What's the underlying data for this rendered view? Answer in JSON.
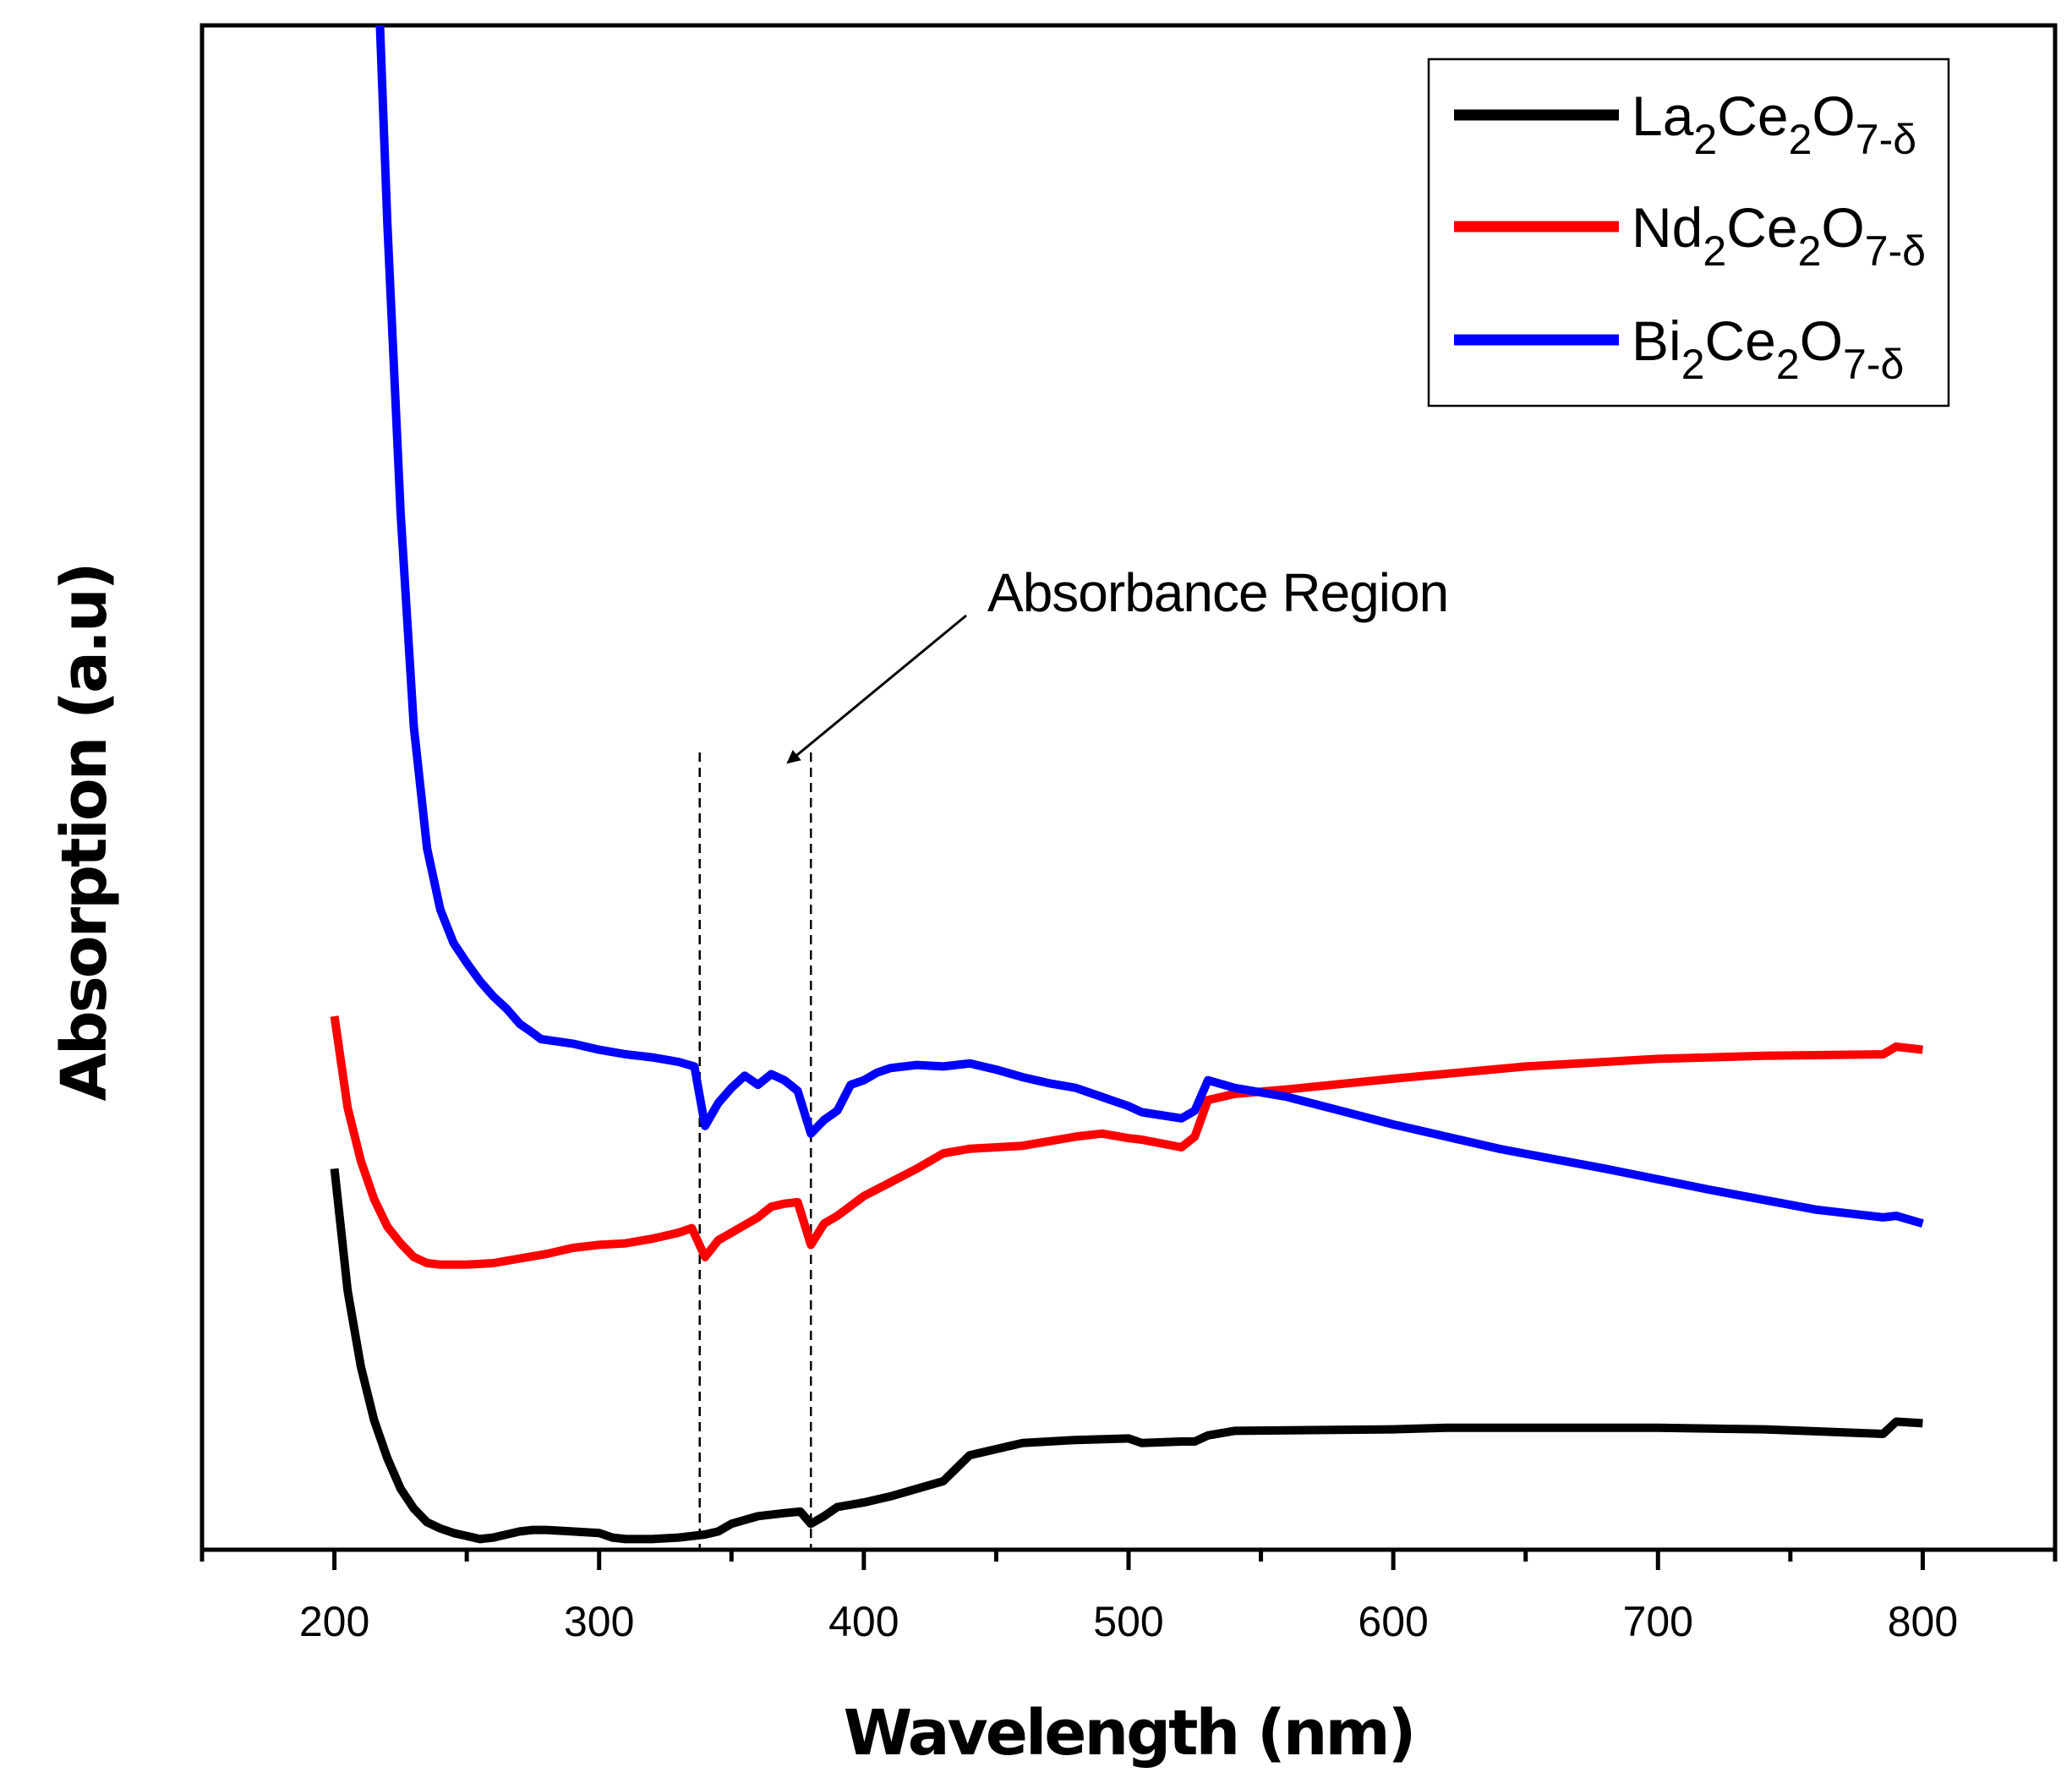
{
  "chart_data": {
    "type": "line",
    "title": "",
    "xlabel": "Wavelength (nm)",
    "ylabel": "Absorption (a.u)",
    "xlim": [
      150,
      850
    ],
    "ylim": [
      0,
      100
    ],
    "xticks": [
      200,
      300,
      400,
      500,
      600,
      700,
      800
    ],
    "xtick_labels": [
      "200",
      "300",
      "400",
      "500",
      "600",
      "700",
      "800"
    ],
    "yticks_shown": false,
    "grid": false,
    "legend_position": "top-right",
    "annotation": {
      "text": "Absorbance Region",
      "dashed_lines_x": [
        338,
        380
      ]
    },
    "series": [
      {
        "name": "La2Ce2O7-δ",
        "legend": {
          "base1": "La",
          "sub1": "2",
          "base2": "Ce",
          "sub2": "2",
          "base3": "O",
          "sub3": "7-δ"
        },
        "color": "#000000",
        "x": [
          200,
          205,
          210,
          215,
          220,
          225,
          230,
          235,
          240,
          245,
          250,
          255,
          260,
          265,
          270,
          275,
          280,
          290,
          300,
          305,
          310,
          320,
          330,
          340,
          345,
          350,
          360,
          370,
          376,
          380,
          385,
          390,
          400,
          410,
          420,
          430,
          440,
          460,
          480,
          500,
          505,
          520,
          525,
          530,
          540,
          600,
          620,
          700,
          740,
          785,
          790,
          800
        ],
        "y": [
          25,
          17,
          12,
          8.5,
          6,
          4,
          2.7,
          1.8,
          1.4,
          1.1,
          0.9,
          0.7,
          0.8,
          1.0,
          1.2,
          1.3,
          1.3,
          1.2,
          1.1,
          0.8,
          0.7,
          0.7,
          0.8,
          1.0,
          1.2,
          1.7,
          2.2,
          2.4,
          2.5,
          1.7,
          2.2,
          2.8,
          3.1,
          3.5,
          4.0,
          4.5,
          6.2,
          7.0,
          7.2,
          7.3,
          7.0,
          7.1,
          7.1,
          7.5,
          7.8,
          7.9,
          8.0,
          8.0,
          7.9,
          7.6,
          8.4,
          8.3
        ]
      },
      {
        "name": "Nd2Ce2O7-δ",
        "legend": {
          "base1": "Nd",
          "sub1": "2",
          "base2": "Ce",
          "sub2": "2",
          "base3": "O",
          "sub3": "7-δ"
        },
        "color": "#ff0000",
        "x": [
          200,
          205,
          210,
          215,
          220,
          225,
          230,
          235,
          240,
          250,
          260,
          270,
          280,
          290,
          300,
          310,
          320,
          330,
          335,
          340,
          345,
          350,
          360,
          365,
          370,
          375,
          380,
          385,
          390,
          400,
          410,
          420,
          430,
          440,
          460,
          480,
          490,
          500,
          505,
          520,
          525,
          530,
          540,
          560,
          600,
          650,
          700,
          740,
          785,
          790,
          800
        ],
        "y": [
          35,
          29,
          25.5,
          23,
          21.2,
          20.1,
          19.2,
          18.8,
          18.7,
          18.7,
          18.8,
          19.1,
          19.4,
          19.8,
          20.0,
          20.1,
          20.4,
          20.8,
          21.1,
          19.2,
          20.3,
          20.8,
          21.8,
          22.5,
          22.7,
          22.8,
          20.0,
          21.4,
          21.9,
          23.2,
          24.1,
          25.0,
          26.0,
          26.3,
          26.5,
          27.1,
          27.3,
          27.0,
          26.9,
          26.4,
          27.1,
          29.5,
          29.9,
          30.2,
          30.9,
          31.7,
          32.2,
          32.4,
          32.5,
          33.0,
          32.8
        ]
      },
      {
        "name": "Bi2Ce2O7-δ",
        "legend": {
          "base1": "Bi",
          "sub1": "2",
          "base2": "Ce",
          "sub2": "2",
          "base3": "O",
          "sub3": "7-δ"
        },
        "color": "#0000ff",
        "x": [
          217,
          220,
          225,
          230,
          235,
          240,
          245,
          250,
          255,
          260,
          265,
          270,
          275,
          278,
          282,
          290,
          300,
          310,
          320,
          330,
          336,
          340,
          345,
          350,
          355,
          360,
          365,
          370,
          375,
          380,
          385,
          390,
          395,
          400,
          405,
          410,
          420,
          430,
          440,
          450,
          460,
          470,
          480,
          490,
          500,
          505,
          520,
          525,
          530,
          540,
          560,
          580,
          600,
          640,
          680,
          720,
          760,
          785,
          790,
          800
        ],
        "y": [
          101,
          87,
          68,
          54,
          46,
          42,
          39.8,
          38.5,
          37.3,
          36.3,
          35.5,
          34.5,
          33.9,
          33.5,
          33.4,
          33.2,
          32.8,
          32.5,
          32.3,
          32.0,
          31.7,
          27.8,
          29.3,
          30.3,
          31.1,
          30.5,
          31.2,
          30.8,
          30.1,
          27.3,
          28.2,
          28.8,
          30.5,
          30.8,
          31.3,
          31.6,
          31.8,
          31.7,
          31.9,
          31.5,
          31.0,
          30.6,
          30.3,
          29.7,
          29.1,
          28.7,
          28.3,
          28.8,
          30.8,
          30.3,
          29.7,
          28.8,
          27.9,
          26.3,
          25.0,
          23.6,
          22.3,
          21.8,
          21.9,
          21.4
        ]
      }
    ]
  }
}
